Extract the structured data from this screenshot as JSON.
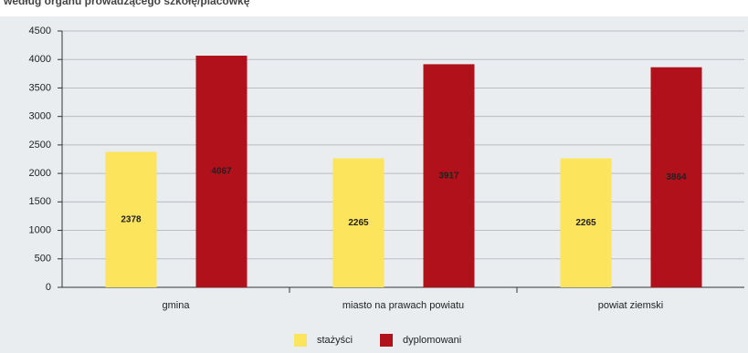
{
  "chart_data": {
    "type": "bar",
    "title": "według organu prowadzącego szkołę/placówkę",
    "categories": [
      "gmina",
      "miasto na prawach powiatu",
      "powiat ziemski"
    ],
    "series": [
      {
        "name": "stażyści",
        "color": "#fce45c",
        "values": [
          2378,
          2265,
          2265
        ]
      },
      {
        "name": "dyplomowani",
        "color": "#b0111a",
        "values": [
          4067,
          3917,
          3864
        ]
      }
    ],
    "ylim": [
      0,
      4500
    ],
    "yticks": [
      0,
      500,
      1000,
      1500,
      2000,
      2500,
      3000,
      3500,
      4000,
      4500
    ],
    "grid": true,
    "legend": "bottom"
  }
}
